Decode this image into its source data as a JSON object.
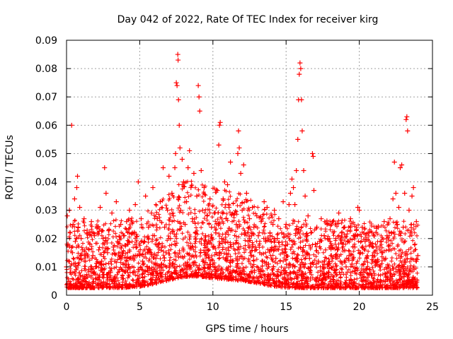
{
  "chart_data": {
    "type": "scatter",
    "title": "Day 042 of 2022, Rate Of TEC Index for receiver kirg",
    "xlabel": "GPS time / hours",
    "ylabel": "ROTI / TECUs",
    "xlim": [
      0,
      25
    ],
    "ylim": [
      0,
      0.09
    ],
    "xticks": [
      0,
      5,
      10,
      15,
      20,
      25
    ],
    "yticks": [
      0,
      0.01,
      0.02,
      0.03,
      0.04,
      0.05,
      0.06,
      0.07,
      0.08,
      0.09
    ],
    "xtick_labels": [
      "0",
      "5",
      "10",
      "15",
      "20",
      "25"
    ],
    "ytick_labels": [
      "0",
      "0.01",
      "0.02",
      "0.03",
      "0.04",
      "0.05",
      "0.06",
      "0.07",
      "0.08",
      "0.09"
    ],
    "grid": true,
    "marker": "+",
    "series": [
      {
        "name": "ROTI",
        "color": "#ff0000",
        "points": [
          [
            0.0,
            0.01
          ],
          [
            0.05,
            0.028
          ],
          [
            0.1,
            0.018
          ],
          [
            0.15,
            0.012
          ],
          [
            0.2,
            0.03
          ],
          [
            0.25,
            0.022
          ],
          [
            0.3,
            0.008
          ],
          [
            0.35,
            0.06
          ],
          [
            0.4,
            0.015
          ],
          [
            0.45,
            0.025
          ],
          [
            0.5,
            0.011
          ],
          [
            0.55,
            0.034
          ],
          [
            0.6,
            0.019
          ],
          [
            0.65,
            0.009
          ],
          [
            0.7,
            0.038
          ],
          [
            0.75,
            0.042
          ],
          [
            0.8,
            0.024
          ],
          [
            0.85,
            0.013
          ],
          [
            0.9,
            0.031
          ],
          [
            0.95,
            0.007
          ],
          [
            1.0,
            0.02
          ],
          [
            1.1,
            0.016
          ],
          [
            1.2,
            0.027
          ],
          [
            1.3,
            0.012
          ],
          [
            1.4,
            0.022
          ],
          [
            1.5,
            0.009
          ],
          [
            1.6,
            0.018
          ],
          [
            1.7,
            0.026
          ],
          [
            1.8,
            0.014
          ],
          [
            1.9,
            0.021
          ],
          [
            2.0,
            0.01
          ],
          [
            2.1,
            0.024
          ],
          [
            2.2,
            0.016
          ],
          [
            2.3,
            0.031
          ],
          [
            2.4,
            0.012
          ],
          [
            2.5,
            0.02
          ],
          [
            2.6,
            0.045
          ],
          [
            2.7,
            0.036
          ],
          [
            2.8,
            0.015
          ],
          [
            2.9,
            0.023
          ],
          [
            3.0,
            0.008
          ],
          [
            3.1,
            0.029
          ],
          [
            3.2,
            0.017
          ],
          [
            3.3,
            0.012
          ],
          [
            3.4,
            0.033
          ],
          [
            3.5,
            0.019
          ],
          [
            3.6,
            0.009
          ],
          [
            3.7,
            0.025
          ],
          [
            3.8,
            0.014
          ],
          [
            3.9,
            0.021
          ],
          [
            4.0,
            0.011
          ],
          [
            4.1,
            0.026
          ],
          [
            4.2,
            0.018
          ],
          [
            4.3,
            0.03
          ],
          [
            4.4,
            0.013
          ],
          [
            4.5,
            0.022
          ],
          [
            4.6,
            0.008
          ],
          [
            4.7,
            0.032
          ],
          [
            4.8,
            0.017
          ],
          [
            4.9,
            0.04
          ],
          [
            5.0,
            0.014
          ],
          [
            5.1,
            0.027
          ],
          [
            5.2,
            0.012
          ],
          [
            5.3,
            0.019
          ],
          [
            5.4,
            0.035
          ],
          [
            5.5,
            0.01
          ],
          [
            5.6,
            0.024
          ],
          [
            5.7,
            0.016
          ],
          [
            5.8,
            0.029
          ],
          [
            5.9,
            0.038
          ],
          [
            6.0,
            0.021
          ],
          [
            6.1,
            0.013
          ],
          [
            6.2,
            0.027
          ],
          [
            6.3,
            0.018
          ],
          [
            6.4,
            0.033
          ],
          [
            6.5,
            0.011
          ],
          [
            6.6,
            0.045
          ],
          [
            6.7,
            0.024
          ],
          [
            6.8,
            0.015
          ],
          [
            6.9,
            0.03
          ],
          [
            7.0,
            0.042
          ],
          [
            7.1,
            0.02
          ],
          [
            7.2,
            0.036
          ],
          [
            7.3,
            0.028
          ],
          [
            7.4,
            0.045
          ],
          [
            7.45,
            0.05
          ],
          [
            7.5,
            0.075
          ],
          [
            7.55,
            0.074
          ],
          [
            7.6,
            0.085
          ],
          [
            7.62,
            0.083
          ],
          [
            7.65,
            0.069
          ],
          [
            7.7,
            0.06
          ],
          [
            7.75,
            0.052
          ],
          [
            7.8,
            0.03
          ],
          [
            7.9,
            0.048
          ],
          [
            8.0,
            0.04
          ],
          [
            8.1,
            0.025
          ],
          [
            8.2,
            0.033
          ],
          [
            8.3,
            0.045
          ],
          [
            8.4,
            0.051
          ],
          [
            8.5,
            0.038
          ],
          [
            8.6,
            0.027
          ],
          [
            8.7,
            0.043
          ],
          [
            8.8,
            0.022
          ],
          [
            8.9,
            0.035
          ],
          [
            9.0,
            0.074
          ],
          [
            9.05,
            0.07
          ],
          [
            9.1,
            0.065
          ],
          [
            9.2,
            0.044
          ],
          [
            9.3,
            0.03
          ],
          [
            9.4,
            0.038
          ],
          [
            9.5,
            0.021
          ],
          [
            9.6,
            0.028
          ],
          [
            9.7,
            0.019
          ],
          [
            9.8,
            0.034
          ],
          [
            9.9,
            0.024
          ],
          [
            10.0,
            0.017
          ],
          [
            10.1,
            0.029
          ],
          [
            10.2,
            0.022
          ],
          [
            10.3,
            0.037
          ],
          [
            10.4,
            0.053
          ],
          [
            10.45,
            0.06
          ],
          [
            10.5,
            0.061
          ],
          [
            10.6,
            0.02
          ],
          [
            10.7,
            0.034
          ],
          [
            10.8,
            0.04
          ],
          [
            10.9,
            0.027
          ],
          [
            11.0,
            0.039
          ],
          [
            11.1,
            0.031
          ],
          [
            11.2,
            0.047
          ],
          [
            11.3,
            0.023
          ],
          [
            11.4,
            0.018
          ],
          [
            11.5,
            0.029
          ],
          [
            11.6,
            0.025
          ],
          [
            11.7,
            0.05
          ],
          [
            11.75,
            0.058
          ],
          [
            11.8,
            0.052
          ],
          [
            11.9,
            0.043
          ],
          [
            12.0,
            0.03
          ],
          [
            12.1,
            0.046
          ],
          [
            12.2,
            0.022
          ],
          [
            12.3,
            0.036
          ],
          [
            12.4,
            0.019
          ],
          [
            12.5,
            0.027
          ],
          [
            12.6,
            0.014
          ],
          [
            12.7,
            0.031
          ],
          [
            12.8,
            0.024
          ],
          [
            12.9,
            0.017
          ],
          [
            13.0,
            0.028
          ],
          [
            13.1,
            0.021
          ],
          [
            13.2,
            0.015
          ],
          [
            13.3,
            0.026
          ],
          [
            13.4,
            0.012
          ],
          [
            13.5,
            0.033
          ],
          [
            13.6,
            0.019
          ],
          [
            13.7,
            0.031
          ],
          [
            13.8,
            0.011
          ],
          [
            13.9,
            0.022
          ],
          [
            14.0,
            0.016
          ],
          [
            14.1,
            0.025
          ],
          [
            14.2,
            0.03
          ],
          [
            14.3,
            0.013
          ],
          [
            14.4,
            0.02
          ],
          [
            14.5,
            0.027
          ],
          [
            14.6,
            0.012
          ],
          [
            14.7,
            0.022
          ],
          [
            14.8,
            0.033
          ],
          [
            14.9,
            0.015
          ],
          [
            15.0,
            0.025
          ],
          [
            15.1,
            0.018
          ],
          [
            15.2,
            0.032
          ],
          [
            15.3,
            0.036
          ],
          [
            15.4,
            0.041
          ],
          [
            15.5,
            0.038
          ],
          [
            15.6,
            0.032
          ],
          [
            15.7,
            0.044
          ],
          [
            15.8,
            0.055
          ],
          [
            15.85,
            0.069
          ],
          [
            15.9,
            0.078
          ],
          [
            15.95,
            0.082
          ],
          [
            16.0,
            0.08
          ],
          [
            16.05,
            0.069
          ],
          [
            16.1,
            0.058
          ],
          [
            16.2,
            0.044
          ],
          [
            16.3,
            0.035
          ],
          [
            16.4,
            0.021
          ],
          [
            16.5,
            0.028
          ],
          [
            16.6,
            0.013
          ],
          [
            16.7,
            0.022
          ],
          [
            16.8,
            0.05
          ],
          [
            16.85,
            0.049
          ],
          [
            16.9,
            0.037
          ],
          [
            17.0,
            0.018
          ],
          [
            17.1,
            0.024
          ],
          [
            17.2,
            0.012
          ],
          [
            17.3,
            0.019
          ],
          [
            17.4,
            0.027
          ],
          [
            17.5,
            0.01
          ],
          [
            17.6,
            0.021
          ],
          [
            17.7,
            0.016
          ],
          [
            17.8,
            0.025
          ],
          [
            17.9,
            0.011
          ],
          [
            18.0,
            0.019
          ],
          [
            18.1,
            0.014
          ],
          [
            18.2,
            0.026
          ],
          [
            18.3,
            0.009
          ],
          [
            18.4,
            0.02
          ],
          [
            18.5,
            0.016
          ],
          [
            18.6,
            0.029
          ],
          [
            18.7,
            0.012
          ],
          [
            18.8,
            0.022
          ],
          [
            18.9,
            0.018
          ],
          [
            19.0,
            0.024
          ],
          [
            19.1,
            0.01
          ],
          [
            19.2,
            0.019
          ],
          [
            19.3,
            0.014
          ],
          [
            19.4,
            0.027
          ],
          [
            19.5,
            0.011
          ],
          [
            19.6,
            0.021
          ],
          [
            19.7,
            0.017
          ],
          [
            19.8,
            0.023
          ],
          [
            19.9,
            0.031
          ],
          [
            20.0,
            0.03
          ],
          [
            20.1,
            0.015
          ],
          [
            20.2,
            0.024
          ],
          [
            20.3,
            0.011
          ],
          [
            20.4,
            0.019
          ],
          [
            20.5,
            0.013
          ],
          [
            20.6,
            0.022
          ],
          [
            20.7,
            0.009
          ],
          [
            20.8,
            0.018
          ],
          [
            20.9,
            0.014
          ],
          [
            21.0,
            0.021
          ],
          [
            21.1,
            0.012
          ],
          [
            21.2,
            0.017
          ],
          [
            21.3,
            0.024
          ],
          [
            21.4,
            0.01
          ],
          [
            21.5,
            0.019
          ],
          [
            21.6,
            0.015
          ],
          [
            21.7,
            0.026
          ],
          [
            21.8,
            0.013
          ],
          [
            21.9,
            0.021
          ],
          [
            22.0,
            0.016
          ],
          [
            22.1,
            0.027
          ],
          [
            22.2,
            0.022
          ],
          [
            22.3,
            0.034
          ],
          [
            22.4,
            0.047
          ],
          [
            22.5,
            0.036
          ],
          [
            22.6,
            0.025
          ],
          [
            22.7,
            0.031
          ],
          [
            22.8,
            0.045
          ],
          [
            22.9,
            0.046
          ],
          [
            23.0,
            0.024
          ],
          [
            23.1,
            0.036
          ],
          [
            23.2,
            0.062
          ],
          [
            23.25,
            0.063
          ],
          [
            23.3,
            0.058
          ],
          [
            23.4,
            0.03
          ],
          [
            23.5,
            0.022
          ],
          [
            23.6,
            0.035
          ],
          [
            23.7,
            0.038
          ],
          [
            23.8,
            0.018
          ],
          [
            23.9,
            0.026
          ],
          [
            24.0,
            0.014
          ]
        ]
      }
    ]
  }
}
